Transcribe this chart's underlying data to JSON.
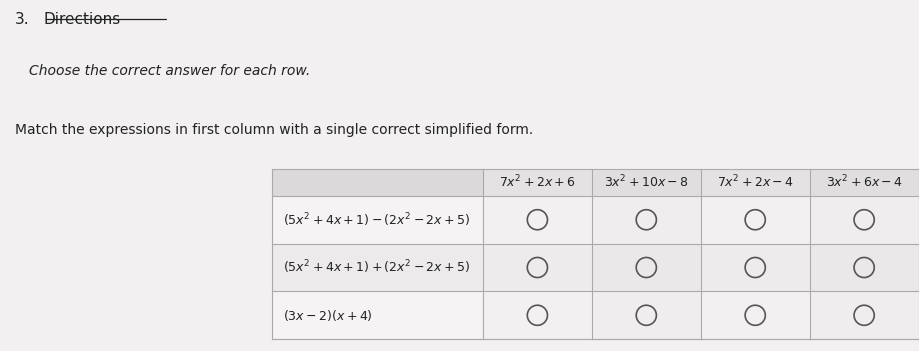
{
  "title_number": "3.",
  "title_text": "Directions",
  "subtitle": "Choose the correct answer for each row.",
  "instruction": "Match the expressions in first column with a single correct simplified form.",
  "col_headers": [
    "$7x^2 + 2x + 6$",
    "$3x^2 + 10x - 8$",
    "$7x^2 + 2x - 4$",
    "$3x^2 + 6x - 4$"
  ],
  "row_expressions": [
    "$(5x^2 + 4x + 1) - (2x^2 - 2x + 5)$",
    "$(5x^2 + 4x + 1) + (2x^2 - 2x + 5)$",
    "$(3x - 2)(x + 4)$"
  ],
  "bg_color": "#f2f0f0",
  "header_bg": "#dbd9d9",
  "row_bg_light": "#f5f3f3",
  "row_bg_dark": "#eceaea",
  "answer_col_light": "#f0eeee",
  "answer_col_dark": "#e8e6e6",
  "figsize": [
    9.2,
    3.51
  ],
  "dpi": 100,
  "circle_color": "#555555",
  "grid_color": "#aaaaaa",
  "text_color": "#222222",
  "title_fontsize": 11,
  "subtitle_fontsize": 10,
  "instruction_fontsize": 10,
  "header_fontsize": 9,
  "row_fontsize": 9
}
